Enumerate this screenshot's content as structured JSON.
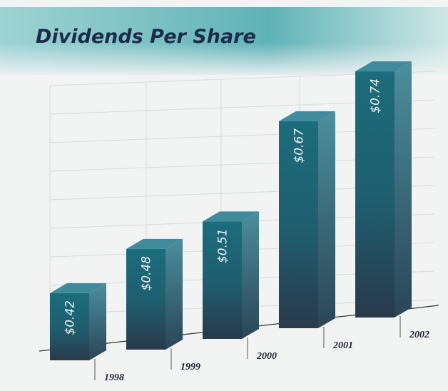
{
  "chart_data": {
    "type": "bar",
    "title": "Dividends Per Share",
    "categories": [
      "1998",
      "1999",
      "2000",
      "2001",
      "2002"
    ],
    "values": [
      0.42,
      0.48,
      0.51,
      0.67,
      0.74
    ],
    "value_labels": [
      "$0.42",
      "$0.48",
      "$0.51",
      "$0.67",
      "$0.74"
    ],
    "color": "#1b6c7c",
    "ylim": [
      0.3,
      0.8
    ]
  }
}
